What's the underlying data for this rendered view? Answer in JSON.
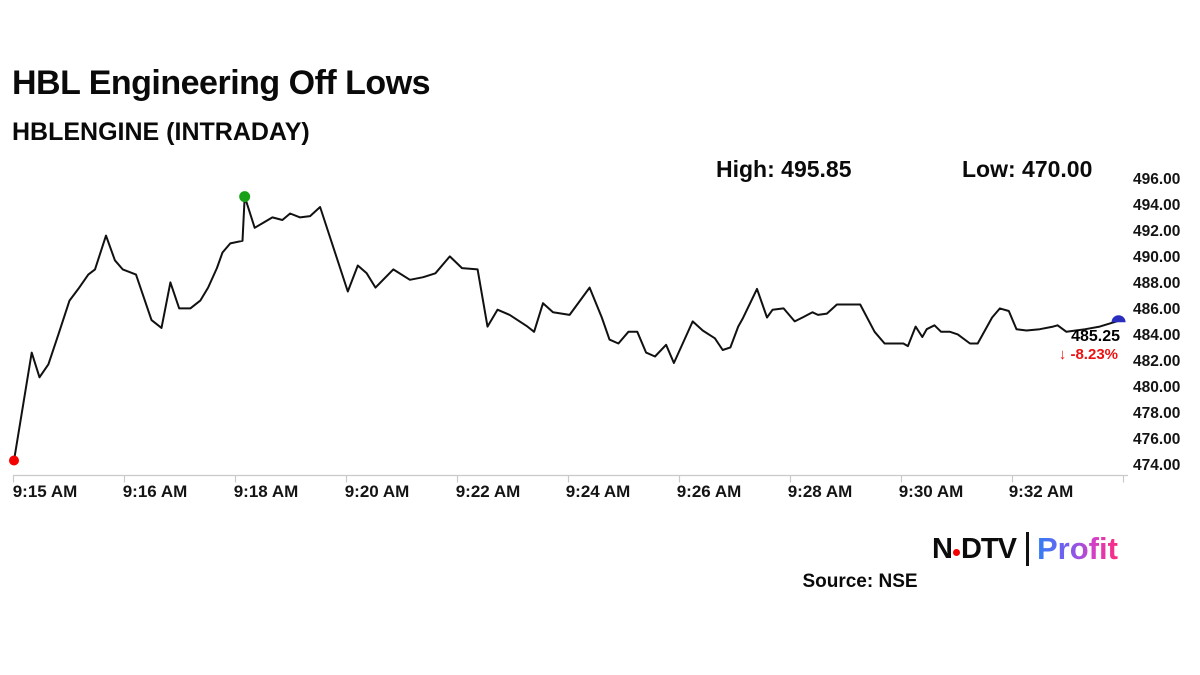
{
  "header": {
    "title": "HBL Engineering Off Lows",
    "subtitle": "HBLENGINE (INTRADAY)"
  },
  "stats": {
    "high_label": "High:",
    "high_value": "495.85",
    "low_label": "Low:",
    "low_value": "470.00"
  },
  "last_quote": {
    "price": "485.25",
    "arrow": "↓",
    "change_percent": "-8.23%"
  },
  "footer": {
    "logo_ndtv_n": "N",
    "logo_ndtv_dtv": "DTV",
    "logo_profit": "Profit",
    "source": "Source: NSE"
  },
  "colors": {
    "line": "#111111",
    "axis": "#c9c9c9",
    "open_marker": "#f40000",
    "high_marker": "#18a018",
    "last_marker": "#2a2ebe",
    "change_red": "#ed1111"
  },
  "chart_data": {
    "type": "line",
    "title": "HBL Engineering Off Lows",
    "symbol": "HBLENGINE",
    "timeframe": "INTRADAY",
    "source": "NSE",
    "high": 495.85,
    "low": 470.0,
    "last": 485.25,
    "change_pct": -8.23,
    "ylim": [
      474,
      496
    ],
    "y_tick_labels": [
      "496.00",
      "494.00",
      "492.00",
      "490.00",
      "488.00",
      "486.00",
      "484.00",
      "482.00",
      "480.00",
      "478.00",
      "476.00",
      "474.00"
    ],
    "x_tick_labels": [
      "9:15 AM",
      "9:16 AM",
      "9:18 AM",
      "9:20 AM",
      "9:22 AM",
      "9:24 AM",
      "9:26 AM",
      "9:28 AM",
      "9:30 AM",
      "9:32 AM"
    ],
    "x_window": [
      "9:15 AM",
      "9:33 AM"
    ],
    "grid": false,
    "legend": false,
    "series": [
      {
        "name": "HBLENGINE intraday price",
        "points": [
          [
            0.0,
            474.5
          ],
          [
            0.016,
            482.8
          ],
          [
            0.023,
            480.9
          ],
          [
            0.031,
            481.9
          ],
          [
            0.04,
            484.2
          ],
          [
            0.05,
            486.8
          ],
          [
            0.058,
            487.7
          ],
          [
            0.067,
            488.8
          ],
          [
            0.073,
            489.2
          ],
          [
            0.083,
            491.8
          ],
          [
            0.091,
            489.9
          ],
          [
            0.098,
            489.2
          ],
          [
            0.11,
            488.8
          ],
          [
            0.124,
            485.3
          ],
          [
            0.133,
            484.7
          ],
          [
            0.141,
            488.2
          ],
          [
            0.149,
            486.2
          ],
          [
            0.159,
            486.2
          ],
          [
            0.168,
            486.8
          ],
          [
            0.175,
            487.8
          ],
          [
            0.183,
            489.3
          ],
          [
            0.188,
            490.5
          ],
          [
            0.195,
            491.2
          ],
          [
            0.206,
            491.4
          ],
          [
            0.208,
            494.8
          ],
          [
            0.217,
            492.4
          ],
          [
            0.225,
            492.8
          ],
          [
            0.233,
            493.2
          ],
          [
            0.242,
            493.0
          ],
          [
            0.249,
            493.5
          ],
          [
            0.258,
            493.2
          ],
          [
            0.267,
            493.3
          ],
          [
            0.276,
            494.0
          ],
          [
            0.301,
            487.5
          ],
          [
            0.31,
            489.5
          ],
          [
            0.318,
            488.9
          ],
          [
            0.326,
            487.8
          ],
          [
            0.342,
            489.2
          ],
          [
            0.357,
            488.4
          ],
          [
            0.369,
            488.6
          ],
          [
            0.38,
            488.9
          ],
          [
            0.393,
            490.2
          ],
          [
            0.404,
            489.3
          ],
          [
            0.418,
            489.2
          ],
          [
            0.427,
            484.8
          ],
          [
            0.436,
            486.1
          ],
          [
            0.447,
            485.7
          ],
          [
            0.463,
            484.8
          ],
          [
            0.469,
            484.4
          ],
          [
            0.477,
            486.6
          ],
          [
            0.486,
            485.9
          ],
          [
            0.501,
            485.7
          ],
          [
            0.519,
            487.8
          ],
          [
            0.53,
            485.5
          ],
          [
            0.537,
            483.8
          ],
          [
            0.545,
            483.5
          ],
          [
            0.554,
            484.4
          ],
          [
            0.562,
            484.4
          ],
          [
            0.57,
            482.8
          ],
          [
            0.578,
            482.5
          ],
          [
            0.588,
            483.4
          ],
          [
            0.595,
            482.0
          ],
          [
            0.612,
            485.2
          ],
          [
            0.621,
            484.5
          ],
          [
            0.632,
            483.9
          ],
          [
            0.639,
            483.0
          ],
          [
            0.646,
            483.2
          ],
          [
            0.653,
            484.8
          ],
          [
            0.657,
            485.4
          ],
          [
            0.67,
            487.7
          ],
          [
            0.679,
            485.5
          ],
          [
            0.684,
            486.1
          ],
          [
            0.694,
            486.2
          ],
          [
            0.704,
            485.2
          ],
          [
            0.711,
            485.5
          ],
          [
            0.72,
            485.9
          ],
          [
            0.725,
            485.7
          ],
          [
            0.733,
            485.8
          ],
          [
            0.742,
            486.5
          ],
          [
            0.763,
            486.5
          ],
          [
            0.776,
            484.4
          ],
          [
            0.785,
            483.5
          ],
          [
            0.802,
            483.5
          ],
          [
            0.806,
            483.3
          ],
          [
            0.813,
            484.8
          ],
          [
            0.819,
            484.0
          ],
          [
            0.823,
            484.6
          ],
          [
            0.83,
            484.9
          ],
          [
            0.836,
            484.4
          ],
          [
            0.844,
            484.4
          ],
          [
            0.851,
            484.2
          ],
          [
            0.862,
            483.5
          ],
          [
            0.869,
            483.5
          ],
          [
            0.882,
            485.5
          ],
          [
            0.889,
            486.2
          ],
          [
            0.897,
            486.0
          ],
          [
            0.904,
            484.6
          ],
          [
            0.913,
            484.5
          ],
          [
            0.925,
            484.6
          ],
          [
            0.937,
            484.8
          ],
          [
            0.941,
            484.9
          ],
          [
            0.949,
            484.4
          ],
          [
            0.966,
            484.6
          ],
          [
            0.979,
            484.8
          ],
          [
            0.996,
            485.25
          ]
        ]
      }
    ],
    "markers": [
      {
        "name": "session-open-low",
        "f": 0.0,
        "price": 474.5,
        "color": "#f40000",
        "shape": "dot"
      },
      {
        "name": "session-high",
        "f": 0.208,
        "price": 494.8,
        "color": "#18a018",
        "shape": "dot"
      },
      {
        "name": "last-trade",
        "f": 0.996,
        "price": 485.25,
        "color": "#2a2ebe",
        "shape": "half-dome"
      }
    ]
  }
}
